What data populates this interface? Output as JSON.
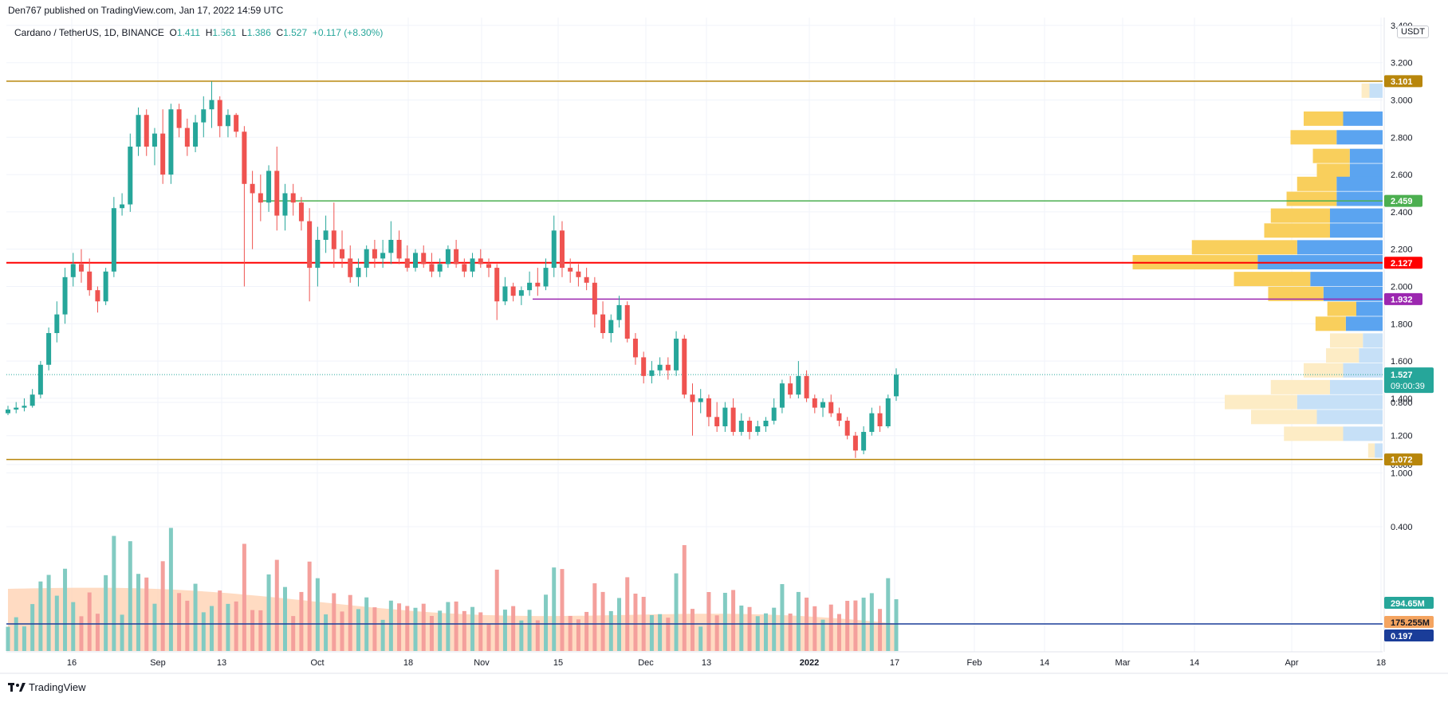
{
  "header": {
    "published": "Den767 published on TradingView.com, Jan 17, 2022 14:59 UTC"
  },
  "legend": {
    "symbol": "Cardano / TetherUS, 1D, BINANCE",
    "o_label": "O",
    "o": "1.411",
    "h_label": "H",
    "h": "1.561",
    "l_label": "L",
    "l": "1.386",
    "c_label": "C",
    "c": "1.527",
    "change": "+0.117 (+8.30%)"
  },
  "currency_badge": "USDT",
  "footer": {
    "brand": "TradingView"
  },
  "colors": {
    "up": "#26a69a",
    "down": "#ef5350",
    "vol_up": "#82cbc2",
    "vol_down": "#f4a09c",
    "level_gold": "#b8860b",
    "level_green": "#4caf50",
    "level_red": "#ff0000",
    "level_purple": "#9c27b0",
    "volume_line": "#1a3d99",
    "profile_blue": "#5ba4f0",
    "profile_yellow": "#f9cf5c",
    "profile_blue_light": "#c6e0f7",
    "profile_yellow_light": "#fdecc5",
    "vol_ma_fill": "#ffcfad"
  },
  "chart_data": {
    "type": "candlestick",
    "interval": "1D",
    "price_axis": {
      "ylim": [
        1.0,
        3.4
      ],
      "ticks": [
        "1.000",
        "1.200",
        "1.400",
        "1.600",
        "1.800",
        "2.000",
        "2.200",
        "2.400",
        "2.600",
        "2.800",
        "3.000",
        "3.200",
        "3.400"
      ],
      "scale": "linear"
    },
    "volume_axis": {
      "ylim": [
        0,
        1.0
      ],
      "ticks": [
        "0.400",
        "0.600",
        "0.800"
      ]
    },
    "x_ticks": [
      "16",
      "Sep",
      "13",
      "Oct",
      "18",
      "Nov",
      "15",
      "Dec",
      "13",
      "2022",
      "17",
      "Feb",
      "14",
      "Mar",
      "14",
      "Apr",
      "18"
    ],
    "ohlc_approx": [
      [
        1.32,
        1.36,
        1.31,
        1.34
      ],
      [
        1.34,
        1.38,
        1.32,
        1.35
      ],
      [
        1.35,
        1.4,
        1.33,
        1.36
      ],
      [
        1.36,
        1.45,
        1.35,
        1.42
      ],
      [
        1.42,
        1.6,
        1.4,
        1.58
      ],
      [
        1.58,
        1.78,
        1.55,
        1.75
      ],
      [
        1.75,
        1.92,
        1.7,
        1.85
      ],
      [
        1.85,
        2.1,
        1.8,
        2.05
      ],
      [
        2.05,
        2.18,
        2.0,
        2.12
      ],
      [
        2.12,
        2.2,
        2.02,
        2.08
      ],
      [
        2.08,
        2.15,
        1.95,
        1.98
      ],
      [
        1.98,
        2.0,
        1.86,
        1.92
      ],
      [
        1.92,
        2.1,
        1.9,
        2.08
      ],
      [
        2.08,
        2.48,
        2.05,
        2.42
      ],
      [
        2.42,
        2.5,
        2.38,
        2.44
      ],
      [
        2.44,
        2.82,
        2.4,
        2.75
      ],
      [
        2.75,
        2.96,
        2.7,
        2.92
      ],
      [
        2.92,
        2.95,
        2.7,
        2.75
      ],
      [
        2.75,
        2.85,
        2.65,
        2.82
      ],
      [
        2.82,
        2.95,
        2.55,
        2.6
      ],
      [
        2.6,
        2.98,
        2.55,
        2.95
      ],
      [
        2.95,
        2.98,
        2.8,
        2.85
      ],
      [
        2.85,
        2.9,
        2.7,
        2.75
      ],
      [
        2.75,
        2.92,
        2.72,
        2.88
      ],
      [
        2.88,
        3.02,
        2.8,
        2.95
      ],
      [
        2.95,
        3.1,
        2.85,
        3.0
      ],
      [
        3.0,
        3.02,
        2.8,
        2.86
      ],
      [
        2.86,
        2.95,
        2.8,
        2.92
      ],
      [
        2.92,
        2.93,
        2.8,
        2.83
      ],
      [
        2.83,
        2.86,
        2.0,
        2.55
      ],
      [
        2.55,
        2.62,
        2.2,
        2.5
      ],
      [
        2.5,
        2.6,
        2.35,
        2.45
      ],
      [
        2.45,
        2.65,
        2.4,
        2.62
      ],
      [
        2.62,
        2.75,
        2.3,
        2.38
      ],
      [
        2.38,
        2.55,
        2.3,
        2.5
      ],
      [
        2.5,
        2.55,
        2.38,
        2.45
      ],
      [
        2.45,
        2.48,
        2.3,
        2.35
      ],
      [
        2.35,
        2.42,
        1.92,
        2.1
      ],
      [
        2.1,
        2.32,
        2.0,
        2.25
      ],
      [
        2.25,
        2.38,
        2.18,
        2.3
      ],
      [
        2.3,
        2.45,
        2.1,
        2.2
      ],
      [
        2.2,
        2.3,
        2.1,
        2.15
      ],
      [
        2.15,
        2.22,
        2.02,
        2.05
      ],
      [
        2.05,
        2.15,
        2.0,
        2.1
      ],
      [
        2.1,
        2.22,
        2.05,
        2.2
      ],
      [
        2.2,
        2.25,
        2.1,
        2.15
      ],
      [
        2.15,
        2.25,
        2.1,
        2.18
      ],
      [
        2.18,
        2.35,
        2.12,
        2.25
      ],
      [
        2.25,
        2.3,
        2.12,
        2.15
      ],
      [
        2.15,
        2.22,
        2.08,
        2.1
      ],
      [
        2.1,
        2.2,
        2.08,
        2.18
      ],
      [
        2.18,
        2.22,
        2.1,
        2.12
      ],
      [
        2.12,
        2.18,
        2.05,
        2.08
      ],
      [
        2.08,
        2.15,
        2.05,
        2.12
      ],
      [
        2.12,
        2.22,
        2.1,
        2.2
      ],
      [
        2.2,
        2.25,
        2.1,
        2.12
      ],
      [
        2.12,
        2.15,
        2.05,
        2.08
      ],
      [
        2.08,
        2.18,
        2.05,
        2.15
      ],
      [
        2.15,
        2.2,
        2.1,
        2.12
      ],
      [
        2.12,
        2.15,
        2.05,
        2.1
      ],
      [
        2.1,
        2.12,
        1.82,
        1.92
      ],
      [
        1.92,
        2.05,
        1.9,
        2.0
      ],
      [
        2.0,
        2.02,
        1.92,
        1.95
      ],
      [
        1.95,
        2.0,
        1.9,
        1.98
      ],
      [
        1.98,
        2.08,
        1.95,
        2.02
      ],
      [
        2.02,
        2.1,
        1.95,
        2.0
      ],
      [
        2.0,
        2.15,
        1.98,
        2.1
      ],
      [
        2.1,
        2.38,
        2.05,
        2.3
      ],
      [
        2.3,
        2.35,
        2.05,
        2.1
      ],
      [
        2.1,
        2.15,
        2.02,
        2.08
      ],
      [
        2.08,
        2.12,
        2.0,
        2.05
      ],
      [
        2.05,
        2.1,
        1.98,
        2.02
      ],
      [
        2.02,
        2.05,
        1.78,
        1.85
      ],
      [
        1.85,
        1.92,
        1.72,
        1.75
      ],
      [
        1.75,
        1.85,
        1.7,
        1.82
      ],
      [
        1.82,
        1.95,
        1.78,
        1.9
      ],
      [
        1.9,
        1.92,
        1.7,
        1.72
      ],
      [
        1.72,
        1.75,
        1.58,
        1.62
      ],
      [
        1.62,
        1.65,
        1.48,
        1.52
      ],
      [
        1.52,
        1.6,
        1.48,
        1.55
      ],
      [
        1.55,
        1.62,
        1.52,
        1.58
      ],
      [
        1.58,
        1.62,
        1.5,
        1.55
      ],
      [
        1.55,
        1.76,
        1.52,
        1.72
      ],
      [
        1.72,
        1.74,
        1.4,
        1.42
      ],
      [
        1.42,
        1.48,
        1.2,
        1.38
      ],
      [
        1.38,
        1.45,
        1.32,
        1.4
      ],
      [
        1.4,
        1.42,
        1.25,
        1.3
      ],
      [
        1.3,
        1.38,
        1.22,
        1.25
      ],
      [
        1.25,
        1.38,
        1.22,
        1.35
      ],
      [
        1.35,
        1.4,
        1.2,
        1.22
      ],
      [
        1.22,
        1.32,
        1.2,
        1.28
      ],
      [
        1.28,
        1.3,
        1.18,
        1.22
      ],
      [
        1.22,
        1.28,
        1.2,
        1.25
      ],
      [
        1.25,
        1.3,
        1.22,
        1.28
      ],
      [
        1.28,
        1.4,
        1.26,
        1.35
      ],
      [
        1.35,
        1.5,
        1.32,
        1.48
      ],
      [
        1.48,
        1.52,
        1.4,
        1.42
      ],
      [
        1.42,
        1.6,
        1.4,
        1.52
      ],
      [
        1.52,
        1.55,
        1.38,
        1.4
      ],
      [
        1.4,
        1.42,
        1.32,
        1.35
      ],
      [
        1.35,
        1.4,
        1.3,
        1.38
      ],
      [
        1.38,
        1.42,
        1.3,
        1.32
      ],
      [
        1.32,
        1.35,
        1.25,
        1.28
      ],
      [
        1.28,
        1.3,
        1.18,
        1.2
      ],
      [
        1.2,
        1.22,
        1.08,
        1.12
      ],
      [
        1.12,
        1.25,
        1.1,
        1.22
      ],
      [
        1.22,
        1.35,
        1.2,
        1.32
      ],
      [
        1.32,
        1.36,
        1.22,
        1.25
      ],
      [
        1.25,
        1.42,
        1.24,
        1.4
      ],
      [
        1.411,
        1.561,
        1.386,
        1.527
      ]
    ],
    "horizontal_levels": [
      {
        "value": 3.101,
        "label": "3.101",
        "color": "#b8860b"
      },
      {
        "value": 2.459,
        "label": "2.459",
        "color": "#4caf50"
      },
      {
        "value": 2.127,
        "label": "2.127",
        "color": "#ff0000"
      },
      {
        "value": 1.932,
        "label": "1.932",
        "color": "#9c27b0"
      },
      {
        "value": 1.072,
        "label": "1.072",
        "color": "#b8860b"
      }
    ],
    "last_price": {
      "value": 1.527,
      "label": "1.527",
      "countdown": "09:00:39"
    },
    "volume_labels": [
      {
        "label": "294.65M",
        "color": "#26a69a"
      },
      {
        "label": "175.255M",
        "color": "#f4a460"
      },
      {
        "label": "0.197",
        "color": "#1a3d99"
      }
    ],
    "volume_profile": [
      {
        "price": 3.05,
        "up": 0.06,
        "down": 0.1,
        "light": true
      },
      {
        "price": 2.9,
        "up": 0.3,
        "down": 0.3,
        "light": false
      },
      {
        "price": 2.8,
        "up": 0.35,
        "down": 0.35,
        "light": false
      },
      {
        "price": 2.7,
        "up": 0.28,
        "down": 0.25,
        "light": false
      },
      {
        "price": 2.62,
        "up": 0.25,
        "down": 0.25,
        "light": false
      },
      {
        "price": 2.55,
        "up": 0.3,
        "down": 0.35,
        "light": false
      },
      {
        "price": 2.47,
        "up": 0.38,
        "down": 0.35,
        "light": false
      },
      {
        "price": 2.38,
        "up": 0.45,
        "down": 0.4,
        "light": false
      },
      {
        "price": 2.3,
        "up": 0.5,
        "down": 0.4,
        "light": false
      },
      {
        "price": 2.21,
        "up": 0.8,
        "down": 0.65,
        "light": false
      },
      {
        "price": 2.13,
        "up": 0.95,
        "down": 0.95,
        "light": false
      },
      {
        "price": 2.04,
        "up": 0.58,
        "down": 0.55,
        "light": false
      },
      {
        "price": 1.96,
        "up": 0.42,
        "down": 0.45,
        "light": false
      },
      {
        "price": 1.88,
        "up": 0.22,
        "down": 0.2,
        "light": false
      },
      {
        "price": 1.8,
        "up": 0.23,
        "down": 0.28,
        "light": false
      },
      {
        "price": 1.71,
        "up": 0.25,
        "down": 0.15,
        "light": true
      },
      {
        "price": 1.63,
        "up": 0.25,
        "down": 0.18,
        "light": true
      },
      {
        "price": 1.55,
        "up": 0.3,
        "down": 0.3,
        "light": true
      },
      {
        "price": 1.46,
        "up": 0.45,
        "down": 0.4,
        "light": true
      },
      {
        "price": 1.38,
        "up": 0.55,
        "down": 0.65,
        "light": true
      },
      {
        "price": 1.3,
        "up": 0.5,
        "down": 0.5,
        "light": true
      },
      {
        "price": 1.21,
        "up": 0.45,
        "down": 0.3,
        "light": true
      },
      {
        "price": 1.12,
        "up": 0.05,
        "down": 0.06,
        "light": true
      }
    ]
  }
}
